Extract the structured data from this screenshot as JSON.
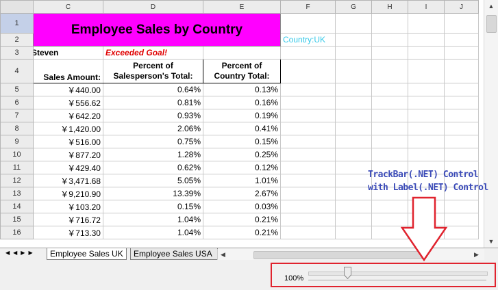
{
  "columns": [
    "",
    "C",
    "D",
    "E",
    "F",
    "G",
    "H",
    "I",
    "J"
  ],
  "rows": [
    "1",
    "2",
    "3",
    "4",
    "5",
    "6",
    "7",
    "8",
    "9",
    "10",
    "11",
    "12",
    "13",
    "14",
    "15",
    "16"
  ],
  "sheet": {
    "title": "Employee Sales by Country",
    "country_label": "Country:UK",
    "salesperson": "Steven",
    "exceeded": "Exceeded Goal!",
    "col_c_header": "Sales Amount:",
    "col_d_header": "Percent of Salesperson's Total:",
    "col_e_header": "Percent of Country Total:"
  },
  "data_rows": [
    {
      "amount": "￥440.00",
      "pct_sp": "0.64%",
      "pct_ct": "0.13%"
    },
    {
      "amount": "￥556.62",
      "pct_sp": "0.81%",
      "pct_ct": "0.16%"
    },
    {
      "amount": "￥642.20",
      "pct_sp": "0.93%",
      "pct_ct": "0.19%"
    },
    {
      "amount": "￥1,420.00",
      "pct_sp": "2.06%",
      "pct_ct": "0.41%"
    },
    {
      "amount": "￥516.00",
      "pct_sp": "0.75%",
      "pct_ct": "0.15%"
    },
    {
      "amount": "￥877.20",
      "pct_sp": "1.28%",
      "pct_ct": "0.25%"
    },
    {
      "amount": "￥429.40",
      "pct_sp": "0.62%",
      "pct_ct": "0.12%"
    },
    {
      "amount": "￥3,471.68",
      "pct_sp": "5.05%",
      "pct_ct": "1.01%"
    },
    {
      "amount": "￥9,210.90",
      "pct_sp": "13.39%",
      "pct_ct": "2.67%"
    },
    {
      "amount": "￥103.20",
      "pct_sp": "0.15%",
      "pct_ct": "0.03%"
    },
    {
      "amount": "￥716.72",
      "pct_sp": "1.04%",
      "pct_ct": "0.21%"
    },
    {
      "amount": "￥713.30",
      "pct_sp": "1.04%",
      "pct_ct": "0.21%"
    }
  ],
  "tabs": [
    "Employee Sales UK",
    "Employee Sales USA"
  ],
  "annotation": {
    "line1": "TrackBar(.NET) Control",
    "line2": "with  Label(.NET) Control"
  },
  "zoom": {
    "label": "100%",
    "trackbar_value": 0.22
  },
  "colors": {
    "title_bg": "#ff00ff",
    "exceeded_text": "#e00000",
    "country_text": "#33c8e8",
    "annotation_text": "#3b4bb8",
    "highlight_box": "#e0232e"
  }
}
